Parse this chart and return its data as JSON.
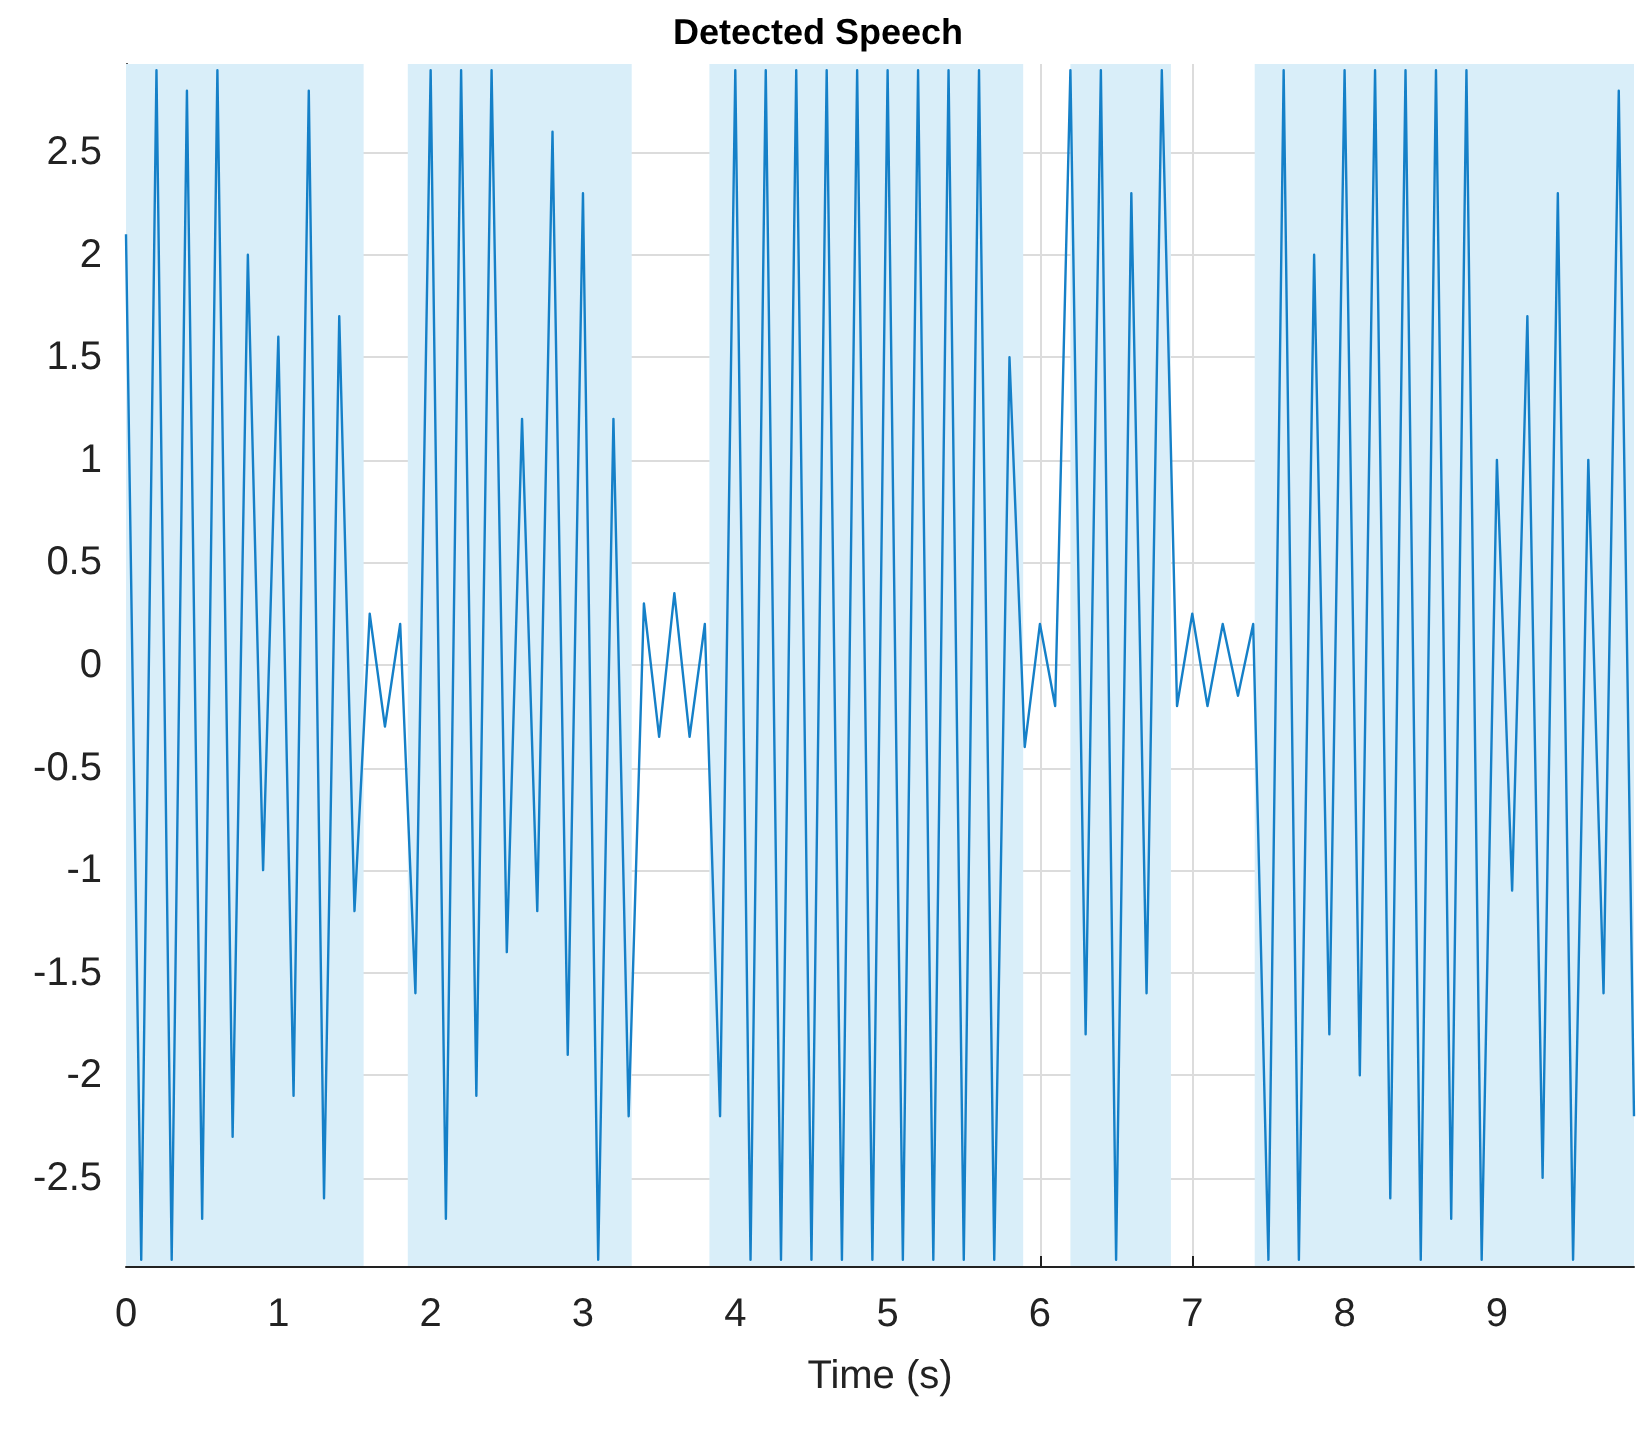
{
  "chart_data": {
    "type": "line",
    "title": "Detected Speech",
    "xlabel": "Time (s)",
    "x": [
      0,
      0.1,
      0.2,
      0.3,
      0.4,
      0.5,
      0.6,
      0.7,
      0.8,
      0.9,
      1,
      1.1,
      1.2,
      1.3,
      1.4,
      1.5,
      1.6,
      1.7,
      1.8,
      1.9,
      2,
      2.1,
      2.2,
      2.3,
      2.4,
      2.5,
      2.6,
      2.7,
      2.8,
      2.9,
      3,
      3.1,
      3.2,
      3.3,
      3.4,
      3.5,
      3.6,
      3.7,
      3.8,
      3.9,
      4,
      4.1,
      4.2,
      4.3,
      4.4,
      4.5,
      4.6,
      4.7,
      4.8,
      4.9,
      5,
      5.1,
      5.2,
      5.3,
      5.4,
      5.5,
      5.6,
      5.7,
      5.8,
      5.9,
      6,
      6.1,
      6.2,
      6.3,
      6.4,
      6.5,
      6.6,
      6.7,
      6.8,
      6.9,
      7,
      7.1,
      7.2,
      7.3,
      7.4,
      7.5,
      7.6,
      7.7,
      7.8,
      7.9,
      8,
      8.1,
      8.2,
      8.3,
      8.4,
      8.5,
      8.6,
      8.7,
      8.8,
      8.9,
      9,
      9.1,
      9.2,
      9.3,
      9.4,
      9.5,
      9.6,
      9.7,
      9.8,
      9.9
    ],
    "series": [
      {
        "color": "#1580c8",
        "values": [
          2.1,
          -2.9,
          2.9,
          -2.9,
          2.8,
          -2.7,
          2.9,
          -2.3,
          2.0,
          -1.0,
          1.6,
          -2.1,
          2.8,
          -2.6,
          1.7,
          -1.2,
          0.25,
          -0.3,
          0.2,
          -1.6,
          2.9,
          -2.7,
          2.9,
          -2.1,
          2.9,
          -1.4,
          1.2,
          -1.2,
          2.6,
          -1.9,
          2.3,
          -2.9,
          1.2,
          -2.2,
          0.3,
          -0.35,
          0.35,
          -0.35,
          0.2,
          -2.2,
          2.9,
          -2.9,
          2.9,
          -2.9,
          2.9,
          -2.9,
          2.9,
          -2.9,
          2.9,
          -2.9,
          2.9,
          -2.9,
          2.9,
          -2.9,
          2.9,
          -2.9,
          2.9,
          -2.9,
          1.5,
          -0.4,
          0.2,
          -0.2,
          2.9,
          -1.8,
          2.9,
          -2.9,
          2.3,
          -1.6,
          2.9,
          -0.2,
          0.25,
          -0.2,
          0.2,
          -0.15,
          0.2,
          -2.9,
          2.9,
          -2.9,
          2.0,
          -1.8,
          2.9,
          -2.0,
          2.9,
          -2.6,
          2.9,
          -2.9,
          2.9,
          -2.7,
          2.9,
          -2.9,
          1.0,
          -1.1,
          1.7,
          -2.5,
          2.3,
          -2.9,
          1.0,
          -1.6,
          2.8,
          -2.2
        ]
      }
    ],
    "bands": [
      {
        "axis": "x",
        "from": 0,
        "to": 1.56,
        "color": "#d9eef9"
      },
      {
        "axis": "x",
        "from": 1.85,
        "to": 3.32,
        "color": "#d9eef9"
      },
      {
        "axis": "x",
        "from": 3.83,
        "to": 5.89,
        "color": "#d9eef9"
      },
      {
        "axis": "x",
        "from": 6.2,
        "to": 6.86,
        "color": "#d9eef9"
      },
      {
        "axis": "x",
        "from": 7.41,
        "to": 9.9,
        "color": "#d9eef9"
      }
    ],
    "xlim": [
      0,
      9.9
    ],
    "xticks": [
      0,
      1,
      2,
      3,
      4,
      5,
      6,
      7,
      8,
      9
    ],
    "ylim": [
      -2.93,
      2.93
    ],
    "yticks": [
      -2.5,
      -2,
      -1.5,
      -1,
      -0.5,
      0,
      0.5,
      1,
      1.5,
      2,
      2.5
    ],
    "grid": true,
    "marker": "none",
    "line_style": "solid"
  }
}
